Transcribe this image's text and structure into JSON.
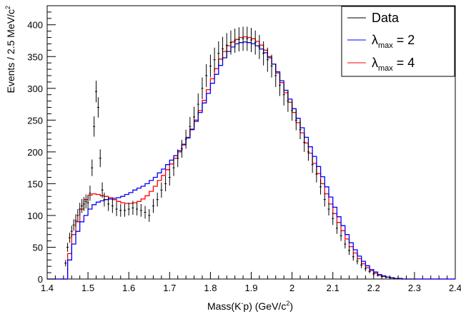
{
  "chart_data": {
    "type": "line",
    "xlabel_parts": [
      "Mass(K",
      "-",
      "p) (GeV/c",
      "2",
      ")"
    ],
    "ylabel_parts": [
      "Events / 2.5 MeV/c",
      "2"
    ],
    "xlim": [
      1.4,
      2.4
    ],
    "ylim": [
      0,
      430
    ],
    "x_ticks": [
      "1.4",
      "1.5",
      "1.6",
      "1.7",
      "1.8",
      "1.9",
      "2",
      "2.1",
      "2.2",
      "2.3",
      "2.4"
    ],
    "y_ticks": [
      "0",
      "50",
      "100",
      "150",
      "200",
      "250",
      "300",
      "350",
      "400"
    ],
    "x_tick_values": [
      1.4,
      1.5,
      1.6,
      1.7,
      1.8,
      1.9,
      2.0,
      2.1,
      2.2,
      2.3,
      2.4
    ],
    "y_tick_values": [
      0,
      50,
      100,
      150,
      200,
      250,
      300,
      350,
      400
    ],
    "grid": false,
    "legend_position": "top-right",
    "bin_width": 0.0025,
    "series": [
      {
        "name": "Data",
        "style": "errorbars",
        "color": "#000000",
        "x": [
          1.44,
          1.445,
          1.45,
          1.455,
          1.46,
          1.465,
          1.47,
          1.475,
          1.48,
          1.485,
          1.49,
          1.495,
          1.5,
          1.505,
          1.51,
          1.515,
          1.52,
          1.525,
          1.53,
          1.535,
          1.54,
          1.55,
          1.56,
          1.57,
          1.58,
          1.59,
          1.6,
          1.61,
          1.62,
          1.63,
          1.64,
          1.65,
          1.66,
          1.67,
          1.68,
          1.69,
          1.7,
          1.71,
          1.72,
          1.73,
          1.74,
          1.75,
          1.76,
          1.77,
          1.78,
          1.79,
          1.8,
          1.81,
          1.82,
          1.83,
          1.84,
          1.85,
          1.86,
          1.87,
          1.88,
          1.89,
          1.9,
          1.91,
          1.92,
          1.93,
          1.94,
          1.95,
          1.96,
          1.97,
          1.98,
          1.99,
          2.0,
          2.01,
          2.02,
          2.03,
          2.04,
          2.05,
          2.06,
          2.07,
          2.08,
          2.09,
          2.1,
          2.11,
          2.12,
          2.13,
          2.14,
          2.15,
          2.16,
          2.17,
          2.18,
          2.19,
          2.2,
          2.21,
          2.22,
          2.23,
          2.24,
          2.25,
          2.26,
          2.27,
          2.28,
          2.29,
          2.3
        ],
        "y": [
          0,
          25,
          50,
          65,
          75,
          85,
          92,
          100,
          110,
          115,
          118,
          122,
          120,
          135,
          175,
          240,
          295,
          270,
          190,
          140,
          125,
          118,
          115,
          110,
          108,
          108,
          110,
          112,
          110,
          108,
          105,
          100,
          115,
          125,
          140,
          150,
          160,
          175,
          190,
          205,
          220,
          240,
          255,
          275,
          300,
          320,
          335,
          345,
          355,
          362,
          368,
          372,
          375,
          377,
          378,
          378,
          376,
          372,
          365,
          355,
          345,
          335,
          320,
          305,
          290,
          280,
          265,
          250,
          235,
          215,
          200,
          180,
          165,
          145,
          125,
          110,
          95,
          80,
          68,
          55,
          45,
          35,
          28,
          22,
          16,
          12,
          8,
          6,
          4,
          3,
          2,
          1,
          1,
          0,
          0,
          0,
          0
        ],
        "yerr": [
          0,
          5,
          7,
          8,
          9,
          9,
          10,
          10,
          10,
          11,
          11,
          11,
          11,
          12,
          13,
          16,
          17,
          16,
          14,
          12,
          11,
          11,
          11,
          11,
          10,
          10,
          10,
          11,
          10,
          10,
          10,
          10,
          11,
          11,
          12,
          12,
          13,
          13,
          14,
          14,
          15,
          15,
          16,
          17,
          17,
          18,
          18,
          19,
          19,
          19,
          19,
          19,
          19,
          19,
          19,
          19,
          19,
          19,
          19,
          19,
          19,
          18,
          18,
          17,
          17,
          17,
          16,
          16,
          15,
          15,
          14,
          13,
          13,
          12,
          11,
          10,
          10,
          9,
          8,
          7,
          7,
          6,
          5,
          5,
          4,
          3,
          3,
          2,
          2,
          2,
          1,
          1,
          1,
          0,
          0,
          0,
          0
        ]
      },
      {
        "name": "λmax = 2",
        "label_parts": [
          "λ",
          "max",
          " = 2"
        ],
        "style": "step",
        "color": "#0000ff",
        "x": [
          1.4,
          1.44,
          1.45,
          1.46,
          1.47,
          1.48,
          1.49,
          1.5,
          1.51,
          1.52,
          1.53,
          1.54,
          1.55,
          1.56,
          1.57,
          1.58,
          1.59,
          1.6,
          1.61,
          1.62,
          1.63,
          1.64,
          1.65,
          1.66,
          1.67,
          1.68,
          1.69,
          1.7,
          1.71,
          1.72,
          1.73,
          1.74,
          1.75,
          1.76,
          1.77,
          1.78,
          1.79,
          1.8,
          1.81,
          1.82,
          1.83,
          1.84,
          1.85,
          1.86,
          1.87,
          1.88,
          1.89,
          1.9,
          1.91,
          1.92,
          1.93,
          1.94,
          1.95,
          1.96,
          1.97,
          1.98,
          1.99,
          2.0,
          2.01,
          2.02,
          2.03,
          2.04,
          2.05,
          2.06,
          2.07,
          2.08,
          2.09,
          2.1,
          2.11,
          2.12,
          2.13,
          2.14,
          2.15,
          2.16,
          2.17,
          2.18,
          2.19,
          2.2,
          2.21,
          2.22,
          2.23,
          2.24,
          2.25,
          2.26,
          2.27,
          2.28,
          2.3,
          2.4
        ],
        "y": [
          0,
          0,
          30,
          55,
          75,
          90,
          100,
          110,
          117,
          121,
          123,
          125,
          126,
          127,
          128,
          130,
          133,
          136,
          140,
          143,
          146,
          150,
          155,
          160,
          167,
          173,
          180,
          187,
          194,
          202,
          212,
          222,
          235,
          248,
          262,
          277,
          292,
          308,
          322,
          336,
          348,
          358,
          365,
          370,
          372,
          373,
          372,
          370,
          367,
          362,
          356,
          348,
          338,
          326,
          312,
          297,
          283,
          268,
          253,
          238,
          223,
          208,
          193,
          177,
          161,
          145,
          129,
          113,
          98,
          84,
          70,
          57,
          46,
          36,
          28,
          21,
          15,
          11,
          7,
          5,
          3,
          2,
          1,
          1,
          0,
          0,
          0,
          0
        ]
      },
      {
        "name": "λmax = 4",
        "label_parts": [
          "λ",
          "max",
          " = 4"
        ],
        "style": "step",
        "color": "#ff0000",
        "x": [
          1.4,
          1.44,
          1.45,
          1.46,
          1.47,
          1.48,
          1.49,
          1.5,
          1.51,
          1.52,
          1.53,
          1.54,
          1.55,
          1.56,
          1.57,
          1.58,
          1.59,
          1.6,
          1.61,
          1.62,
          1.63,
          1.64,
          1.65,
          1.66,
          1.67,
          1.68,
          1.69,
          1.7,
          1.71,
          1.72,
          1.73,
          1.74,
          1.75,
          1.76,
          1.77,
          1.78,
          1.79,
          1.8,
          1.81,
          1.82,
          1.83,
          1.84,
          1.85,
          1.86,
          1.87,
          1.88,
          1.89,
          1.9,
          1.91,
          1.92,
          1.93,
          1.94,
          1.95,
          1.96,
          1.97,
          1.98,
          1.99,
          2.0,
          2.01,
          2.02,
          2.03,
          2.04,
          2.05,
          2.06,
          2.07,
          2.08,
          2.09,
          2.1,
          2.11,
          2.12,
          2.13,
          2.14,
          2.15,
          2.16,
          2.17,
          2.18,
          2.19,
          2.2,
          2.21,
          2.22,
          2.23,
          2.24,
          2.25,
          2.26,
          2.27,
          2.28,
          2.3,
          2.4
        ],
        "y": [
          0,
          0,
          40,
          70,
          90,
          110,
          125,
          132,
          134,
          133,
          131,
          130,
          128,
          125,
          122,
          120,
          119,
          119,
          120,
          122,
          126,
          131,
          138,
          146,
          155,
          163,
          172,
          181,
          190,
          200,
          211,
          223,
          236,
          250,
          265,
          281,
          298,
          315,
          331,
          346,
          358,
          367,
          373,
          377,
          380,
          381,
          380,
          378,
          374,
          368,
          360,
          350,
          338,
          324,
          309,
          293,
          278,
          262,
          246,
          230,
          214,
          198,
          182,
          166,
          150,
          134,
          118,
          103,
          89,
          76,
          63,
          51,
          41,
          32,
          24,
          18,
          13,
          9,
          6,
          4,
          3,
          2,
          1,
          1,
          0,
          0,
          0,
          0
        ]
      }
    ]
  }
}
